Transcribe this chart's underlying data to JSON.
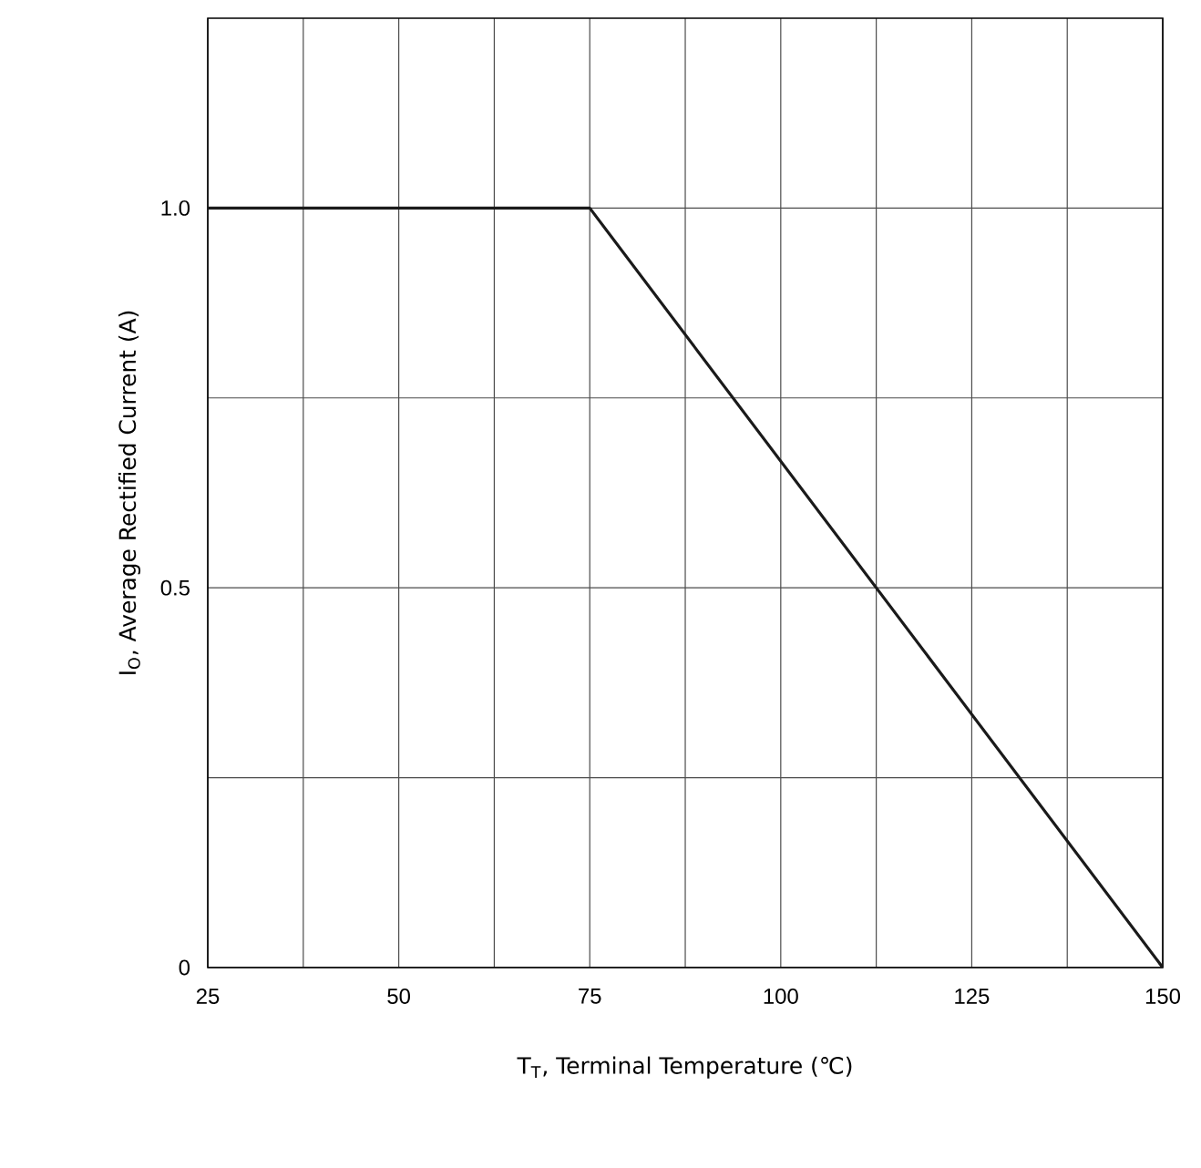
{
  "chart_data": {
    "type": "line",
    "xlabel": "T$_{T}$, Terminal Temperature (℃)",
    "ylabel": "I$_{O}$, Average Rectified Current (A)",
    "x": [
      25,
      75,
      150
    ],
    "series": [
      {
        "color": "#1a1a1a",
        "values": [
          1.0,
          1.0,
          0
        ]
      }
    ],
    "xlim": [
      25,
      150
    ],
    "ylim": [
      0,
      1.25
    ],
    "xticks": [
      25,
      {
        "value": 37.5,
        "label": null
      },
      50,
      {
        "value": 62.5,
        "label": null
      },
      75,
      {
        "value": 87.5,
        "label": null
      },
      100,
      {
        "value": 112.5,
        "label": null
      },
      125,
      {
        "value": 137.5,
        "label": null
      },
      150
    ],
    "yticks": [
      0,
      {
        "value": 0.25,
        "label": null
      },
      {
        "value": 0.5,
        "label": "0.5"
      },
      {
        "value": 0.75,
        "label": null
      },
      {
        "value": 1.0,
        "label": "1.0"
      }
    ],
    "grid": true
  }
}
